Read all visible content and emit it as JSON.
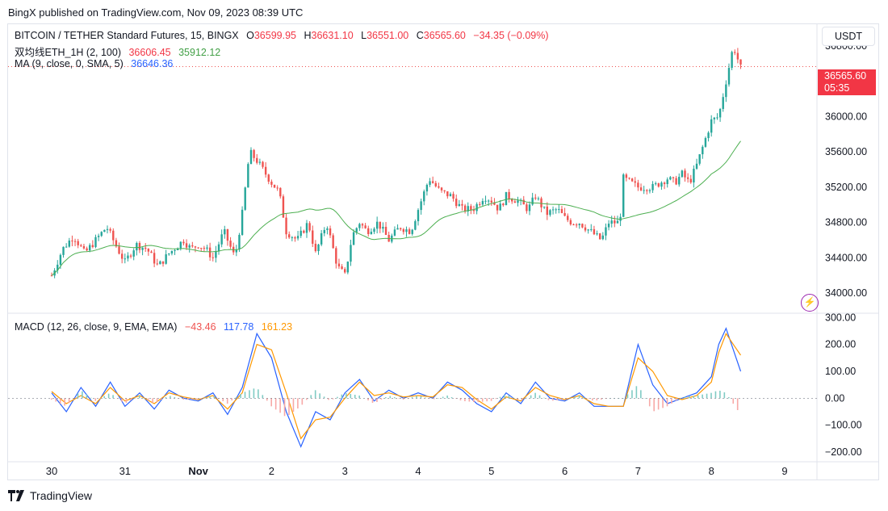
{
  "header": {
    "publisher": "BingX published on TradingView.com, Nov 09, 2023 08:39 UTC"
  },
  "legend": {
    "symbol": "BITCOIN / TETHER Standard Futures, 15, BINGX",
    "o_label": "O",
    "o": "36599.95",
    "h_label": "H",
    "h": "36631.10",
    "l_label": "L",
    "l": "36551.00",
    "c_label": "C",
    "c": "36565.60",
    "change": "−34.35 (−0.09%)",
    "ind1_name": "双均线ETH_1H (2, 100)",
    "ind1_v1": "36606.45",
    "ind1_v2": "35912.12",
    "ma_name": "MA (9, close, 0, SMA, 5)",
    "ma_v": "36646.36",
    "macd_name": "MACD (12, 26, close, 9, EMA, EMA)",
    "macd_hist": "−43.46",
    "macd_v": "117.78",
    "macd_signal": "161.23"
  },
  "currency_button": "USDT",
  "last_price": {
    "value": "36565.60",
    "countdown": "05:35"
  },
  "footer": {
    "brand": "TradingView"
  },
  "colors": {
    "up": "#26a69a",
    "down": "#ef5350",
    "macd": "#2962ff",
    "signal": "#ff9800",
    "ma": "#4caf50",
    "price_tag": "#f23645"
  },
  "icons": {
    "logo": "tradingview-logo-icon",
    "alert": "lightning-icon"
  },
  "chart_data": [
    {
      "type": "line",
      "title": "BITCOIN / TETHER Standard Futures, 15, BINGX",
      "x_ticks": [
        "30",
        "31",
        "Nov",
        "2",
        "3",
        "4",
        "5",
        "6",
        "7",
        "8",
        "9"
      ],
      "y_ticks": [
        "34000.00",
        "34400.00",
        "34800.00",
        "35200.00",
        "35600.00",
        "36000.00",
        "36800.00"
      ],
      "ylim": [
        33800,
        37000
      ],
      "grid": false,
      "series": [
        {
          "name": "Price",
          "x": [
            0,
            0.15,
            0.3,
            0.45,
            0.6,
            0.75,
            0.9,
            1,
            1.15,
            1.3,
            1.45,
            1.6,
            1.8,
            1.9,
            2,
            2.1,
            2.2,
            2.35,
            2.5,
            2.6,
            2.7,
            2.8,
            3,
            3.1,
            3.2,
            3.35,
            3.5,
            3.6,
            3.75,
            3.9,
            4,
            4.1,
            4.2,
            4.3,
            4.45,
            4.6,
            4.75,
            4.9,
            5,
            5.15,
            5.3,
            5.45,
            5.6,
            5.75,
            5.9,
            6,
            6.1,
            6.2,
            6.35,
            6.5,
            6.6,
            6.75,
            6.9,
            7,
            7.1,
            7.2,
            7.35,
            7.5,
            7.6,
            7.75,
            7.8,
            7.9,
            8,
            8.2,
            8.4,
            8.5,
            8.6,
            8.7,
            8.8,
            8.9,
            9,
            9.1,
            9.2,
            9.3,
            9.4
          ],
          "values": [
            34200,
            34500,
            34650,
            34450,
            34600,
            34750,
            34500,
            34350,
            34550,
            34500,
            34300,
            34450,
            34600,
            34500,
            34550,
            34500,
            34400,
            34700,
            34400,
            34900,
            35600,
            35500,
            35250,
            35150,
            34700,
            34600,
            34800,
            34450,
            34800,
            34300,
            34200,
            34650,
            34800,
            34700,
            34800,
            34600,
            34750,
            34700,
            34950,
            35300,
            35150,
            35100,
            34950,
            34950,
            35100,
            35050,
            34950,
            35100,
            35050,
            34950,
            35100,
            34900,
            34950,
            34850,
            34800,
            34800,
            34700,
            34600,
            34800,
            34800,
            35300,
            35250,
            35200,
            35200,
            35300,
            35250,
            35350,
            35250,
            35450,
            35700,
            35950,
            36000,
            36400,
            36800,
            36550
          ]
        }
      ]
    },
    {
      "type": "line",
      "title": "MACD (12, 26, close, 9, EMA, EMA)",
      "y_ticks": [
        "−200.00",
        "−100.00",
        "0.00",
        "100.00",
        "200.00",
        "300.00"
      ],
      "ylim": [
        -230,
        310
      ],
      "series": [
        {
          "name": "MACD",
          "x": [
            0,
            0.2,
            0.4,
            0.6,
            0.8,
            1,
            1.2,
            1.4,
            1.6,
            1.8,
            2,
            2.2,
            2.4,
            2.6,
            2.8,
            3,
            3.2,
            3.4,
            3.6,
            3.8,
            4,
            4.2,
            4.4,
            4.6,
            4.8,
            5,
            5.2,
            5.4,
            5.6,
            5.8,
            6,
            6.2,
            6.4,
            6.6,
            6.8,
            7,
            7.2,
            7.4,
            7.6,
            7.8,
            8,
            8.2,
            8.4,
            8.6,
            8.8,
            9,
            9.1,
            9.2,
            9.3,
            9.4
          ],
          "values": [
            20,
            -50,
            40,
            -30,
            60,
            -30,
            20,
            -40,
            30,
            0,
            -10,
            20,
            -60,
            40,
            240,
            150,
            -50,
            -180,
            -50,
            -80,
            20,
            70,
            -10,
            30,
            0,
            20,
            0,
            60,
            30,
            -20,
            -50,
            20,
            -20,
            60,
            0,
            -10,
            20,
            -30,
            -30,
            -30,
            200,
            50,
            -20,
            0,
            20,
            80,
            200,
            260,
            180,
            100
          ]
        },
        {
          "name": "Signal",
          "x": [
            0,
            0.2,
            0.4,
            0.6,
            0.8,
            1,
            1.2,
            1.4,
            1.6,
            1.8,
            2,
            2.2,
            2.4,
            2.6,
            2.8,
            3,
            3.2,
            3.4,
            3.6,
            3.8,
            4,
            4.2,
            4.4,
            4.6,
            4.8,
            5,
            5.2,
            5.4,
            5.6,
            5.8,
            6,
            6.2,
            6.4,
            6.6,
            6.8,
            7,
            7.2,
            7.4,
            7.6,
            7.8,
            8,
            8.2,
            8.4,
            8.6,
            8.8,
            9,
            9.1,
            9.2,
            9.3,
            9.4
          ],
          "values": [
            25,
            -20,
            10,
            -20,
            40,
            -10,
            10,
            -20,
            20,
            5,
            -5,
            10,
            -40,
            20,
            200,
            180,
            20,
            -150,
            -80,
            -70,
            0,
            60,
            10,
            20,
            5,
            10,
            5,
            50,
            40,
            -5,
            -40,
            5,
            -10,
            40,
            10,
            -5,
            10,
            -20,
            -30,
            -30,
            150,
            100,
            10,
            -5,
            10,
            60,
            170,
            240,
            200,
            160
          ]
        }
      ]
    }
  ]
}
